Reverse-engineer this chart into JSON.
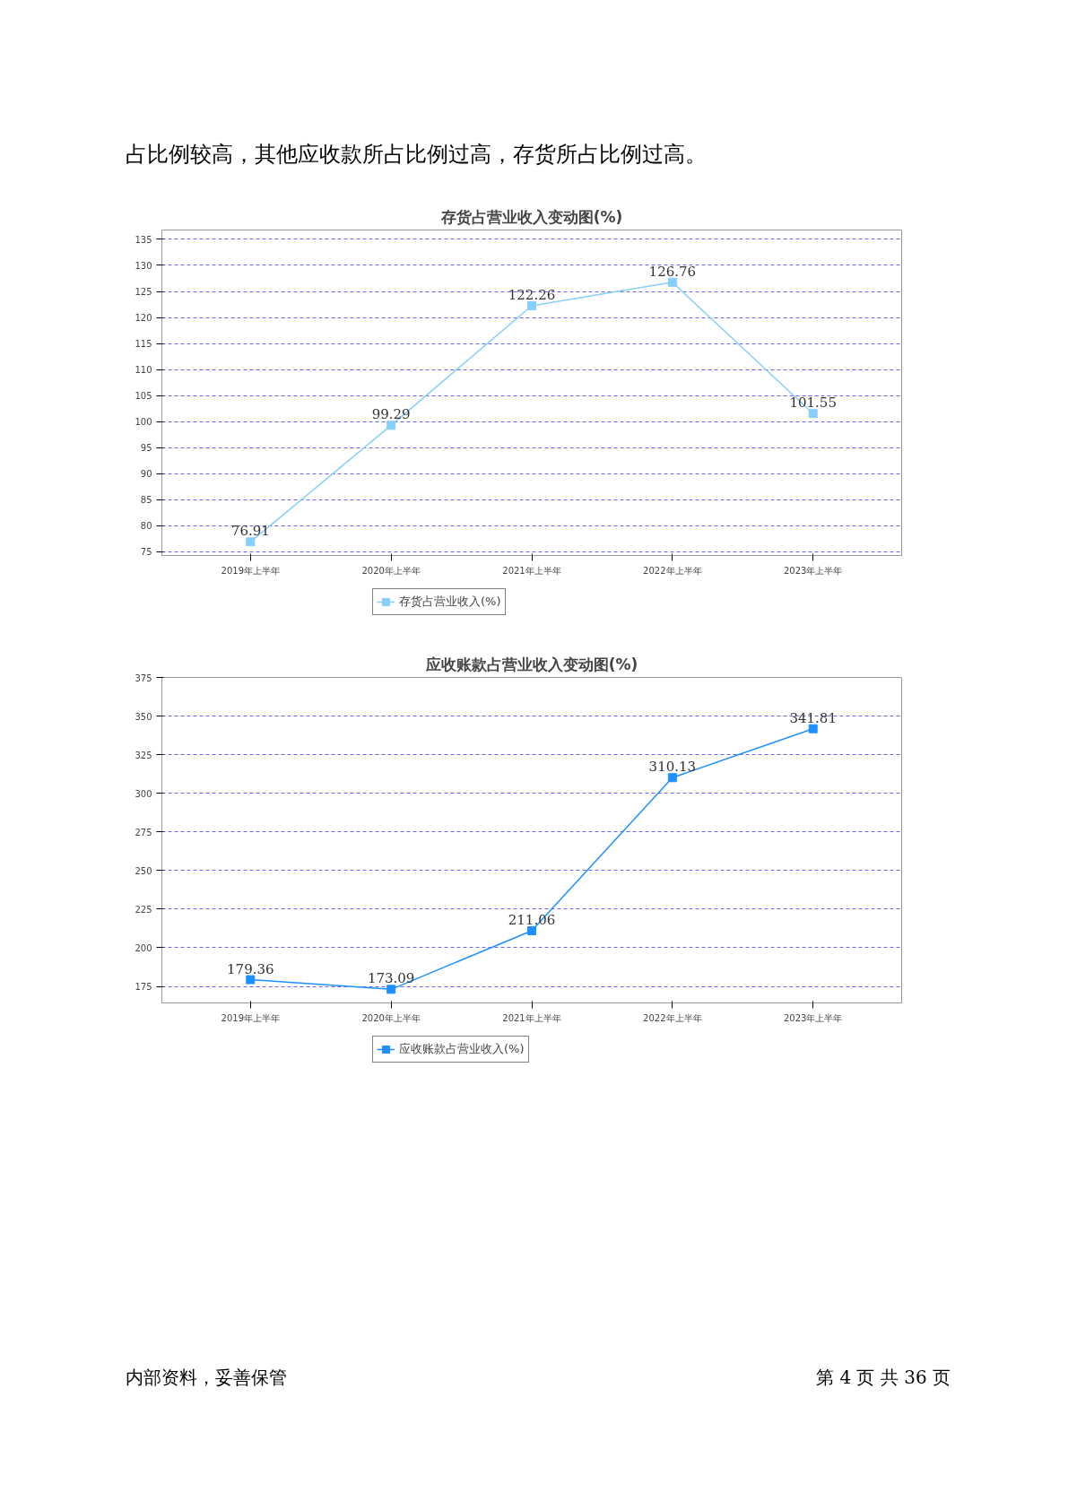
{
  "chart_data": [
    {
      "type": "line",
      "title": "存货占营业收入变动图(%)",
      "categories": [
        "2019年上半年",
        "2020年上半年",
        "2021年上半年",
        "2022年上半年",
        "2023年上半年"
      ],
      "series": [
        {
          "name": "存货占营业收入(%)",
          "color": "#87cefa",
          "values": [
            76.91,
            99.29,
            122.26,
            126.76,
            101.55
          ]
        }
      ],
      "ylim": [
        74.3,
        136.8
      ],
      "yticks": [
        75,
        80,
        85,
        90,
        95,
        100,
        105,
        110,
        115,
        120,
        125,
        130,
        135
      ],
      "grid": "y",
      "legend": "bottom",
      "marker": "square",
      "line_style": "solid",
      "data_labels": true,
      "annotations": [
        "占比例较高，其他应收款所占比例过高，存货所占比例过高。"
      ]
    },
    {
      "type": "line",
      "title": "应收账款占营业收入变动图(%)",
      "categories": [
        "2019年上半年",
        "2020年上半年",
        "2021年上半年",
        "2022年上半年",
        "2023年上半年"
      ],
      "series": [
        {
          "name": "应收账款占营业收入(%)",
          "color": "#1e90ff",
          "values": [
            179.36,
            173.09,
            211.06,
            310.13,
            341.81
          ]
        }
      ],
      "ylim": [
        164.3,
        375
      ],
      "yticks": [
        175,
        200,
        225,
        250,
        275,
        300,
        325,
        350,
        375
      ],
      "grid": "y",
      "legend": "bottom",
      "marker": "square",
      "line_style": "solid",
      "data_labels": true,
      "annotations": [
        "内部资料，妥善保管",
        "第 4 页   共 36 页"
      ]
    }
  ]
}
